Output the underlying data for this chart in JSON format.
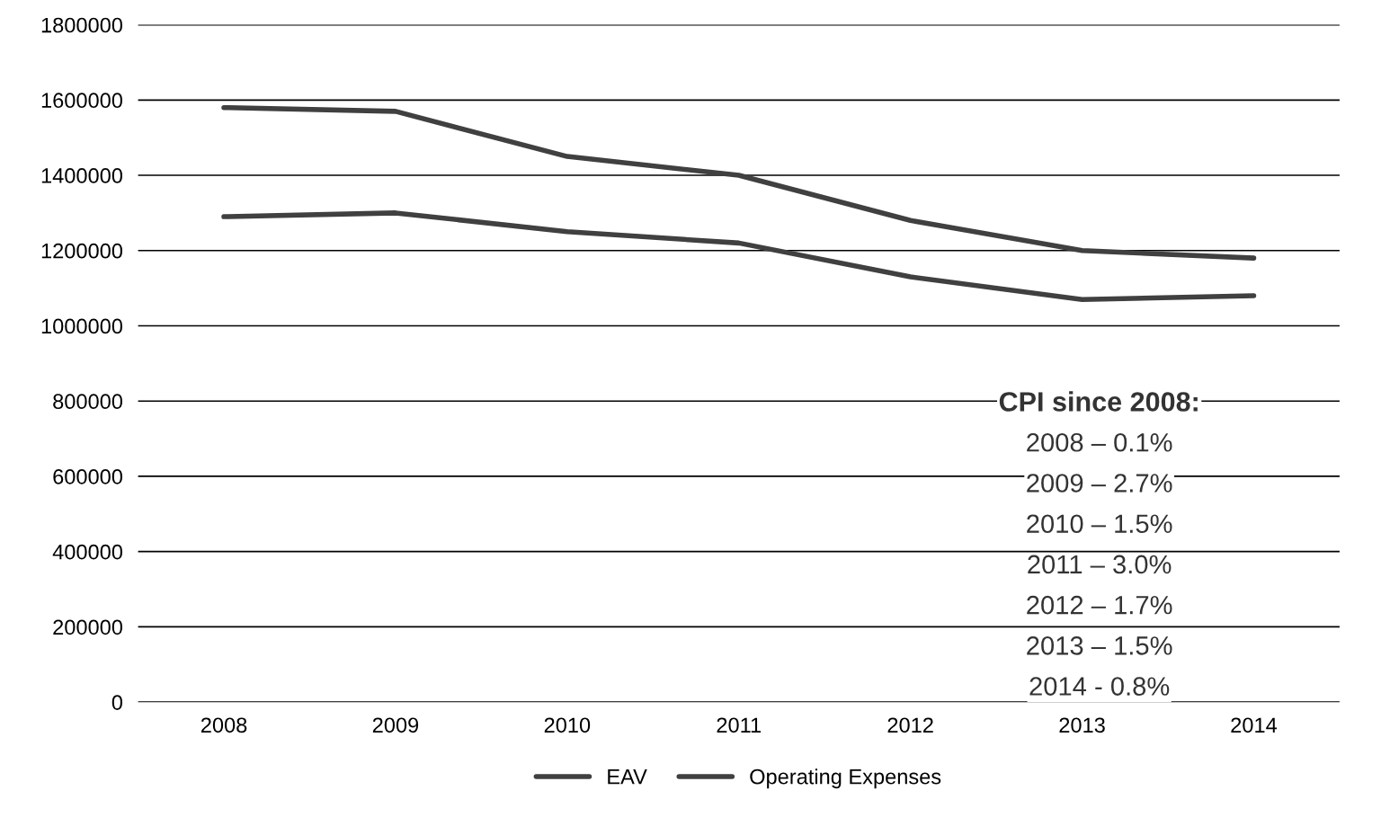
{
  "chart_data": {
    "type": "line",
    "categories": [
      "2008",
      "2009",
      "2010",
      "2011",
      "2012",
      "2013",
      "2014"
    ],
    "series": [
      {
        "name": "EAV",
        "color": "#404040",
        "values": [
          1580000,
          1570000,
          1450000,
          1400000,
          1280000,
          1200000,
          1180000
        ]
      },
      {
        "name": "Operating Expenses",
        "color": "#404040",
        "values": [
          1290000,
          1300000,
          1250000,
          1220000,
          1130000,
          1070000,
          1080000
        ]
      }
    ],
    "ylim": [
      0,
      1800000
    ],
    "yticks": [
      0,
      200000,
      400000,
      600000,
      800000,
      1000000,
      1200000,
      1400000,
      1600000,
      1800000
    ],
    "grid": "y",
    "legend": "bottom",
    "marker": "none",
    "line_style": "solid",
    "annotations": [
      "CPI since 2008:",
      "2008 – 0.1%",
      "2009 – 2.7%",
      "2010 – 1.5%",
      "2011 – 3.0%",
      "2012 – 1.7%",
      "2013 – 1.5%",
      "2014 - 0.8%"
    ]
  }
}
